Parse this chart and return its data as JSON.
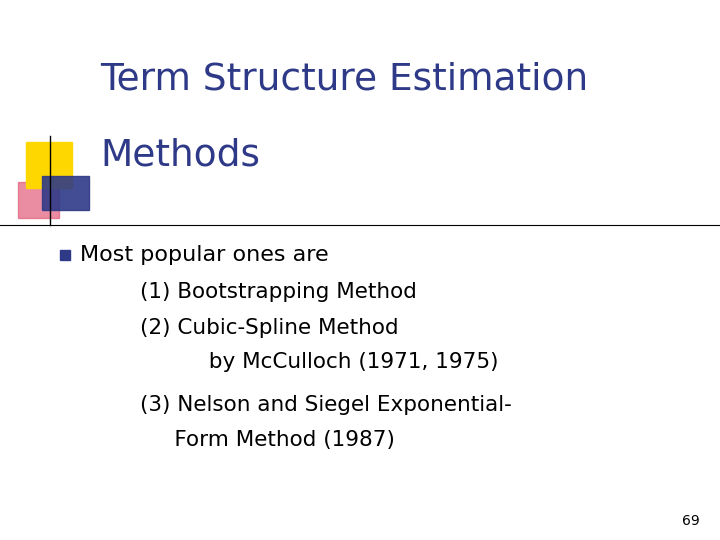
{
  "title_line1": "Term Structure Estimation",
  "title_line2": "Methods",
  "title_color": "#2E3A87",
  "background_color": "#FFFFFF",
  "bullet_color": "#2E3A87",
  "bullet_text": "Most popular ones are",
  "sub_lines": [
    "(1) Bootstrapping Method",
    "(2) Cubic-Spline Method",
    "          by McCulloch (1971, 1975)",
    "(3) Nelson and Siegel Exponential-",
    "     Form Method (1987)"
  ],
  "page_number": "69",
  "logo_yellow_color": "#FFD700",
  "logo_red_color": "#E05070",
  "logo_blue_color": "#2E3A87"
}
